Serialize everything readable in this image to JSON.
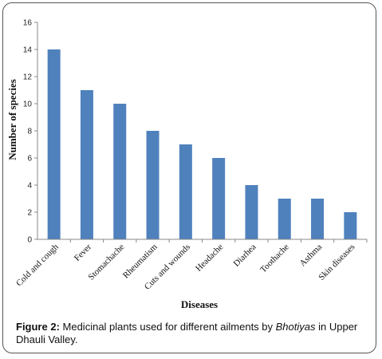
{
  "chart_data": {
    "type": "bar",
    "categories": [
      "Cold and cough",
      "Fever",
      "Stomachache",
      "Rheumatism",
      "Cuts and wounds",
      "Headache",
      "Diarhea",
      "Toothache",
      "Asthma",
      "Skin diseases"
    ],
    "values": [
      14,
      11,
      10,
      8,
      7,
      6,
      4,
      3,
      3,
      2
    ],
    "xlabel": "Diseases",
    "ylabel": "Number of species",
    "ylim": [
      0,
      16
    ],
    "yticks": [
      "0",
      "2",
      "4",
      "6",
      "8",
      "10",
      "12",
      "14",
      "16"
    ],
    "grid": false,
    "bar_color": "#4f81bd"
  },
  "caption": {
    "lead": "Figure 2:",
    "text_before": " Medicinal plants used for different ailments by ",
    "italic": "Bhotiyas",
    "text_after": " in Upper Dhauli Valley."
  }
}
